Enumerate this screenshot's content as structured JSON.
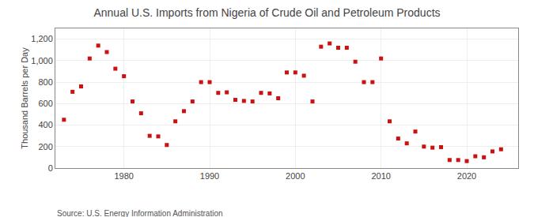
{
  "chart_data": {
    "type": "scatter",
    "title": "Annual U.S. Imports from Nigeria of Crude Oil and Petroleum Products",
    "ylabel": "Thousand Barrels per Day",
    "annotations": [
      "Source: U.S. Energy Information Administration"
    ],
    "x": [
      1973,
      1974,
      1975,
      1976,
      1977,
      1978,
      1979,
      1980,
      1981,
      1982,
      1983,
      1984,
      1985,
      1986,
      1987,
      1988,
      1989,
      1990,
      1991,
      1992,
      1993,
      1994,
      1995,
      1996,
      1997,
      1998,
      1999,
      2000,
      2001,
      2002,
      2003,
      2004,
      2005,
      2006,
      2007,
      2008,
      2009,
      2010,
      2011,
      2012,
      2013,
      2014,
      2015,
      2016,
      2017,
      2018,
      2019,
      2020,
      2021,
      2022,
      2023,
      2024
    ],
    "values": [
      450,
      710,
      760,
      1020,
      1140,
      1080,
      925,
      855,
      620,
      510,
      300,
      295,
      215,
      435,
      530,
      620,
      800,
      800,
      700,
      705,
      635,
      625,
      620,
      700,
      695,
      650,
      890,
      890,
      860,
      620,
      1130,
      1160,
      1120,
      1120,
      990,
      800,
      800,
      1020,
      435,
      275,
      230,
      340,
      200,
      190,
      195,
      75,
      75,
      65,
      110,
      100,
      155,
      175
    ],
    "color": "#cc1111",
    "marker": "square",
    "xlim": [
      1972,
      2026
    ],
    "xticks": [
      1980,
      1990,
      2000,
      2010,
      2020
    ],
    "ylim": [
      0,
      1300
    ],
    "yticks": [
      0,
      200,
      400,
      600,
      800,
      {
        "value": 1000,
        "label": "1,000"
      },
      {
        "value": 1200,
        "label": "1,200"
      }
    ],
    "grid": true
  }
}
